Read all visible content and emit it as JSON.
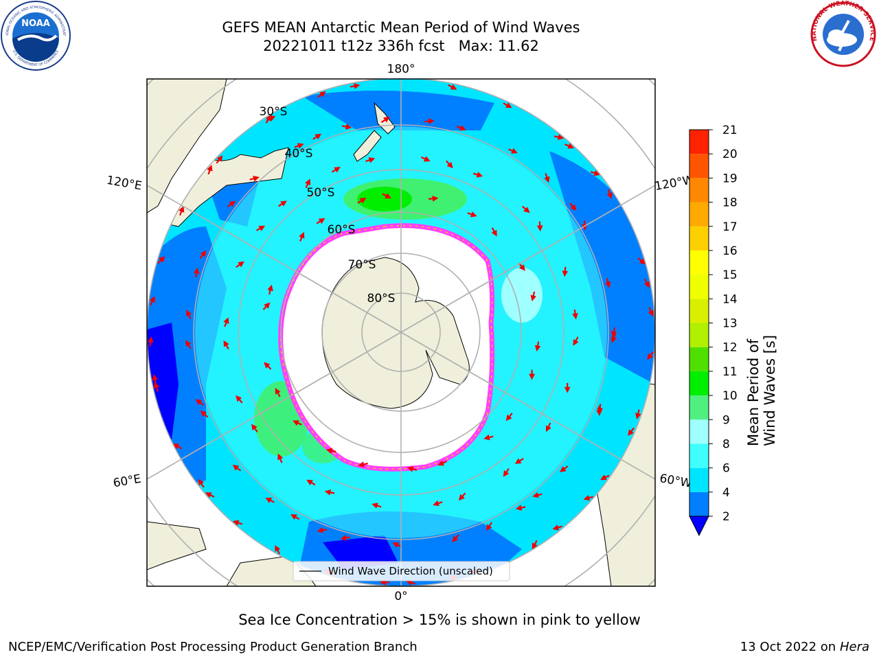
{
  "title": {
    "line1": "GEFS MEAN Antarctic Mean Period of Wind Waves",
    "line2": "20221011 t12z 336h fcst   Max: 11.62"
  },
  "logos": {
    "noaa_text": "NOAA",
    "noaa_ring": "NATIONAL OCEANIC AND ATMOSPHERIC ADMINISTRATION",
    "noaa_ring_bottom": "U.S. DEPARTMENT OF COMMERCE",
    "nws_ring": "NATIONAL WEATHER SERVICE"
  },
  "map": {
    "projection": "south-polar-stereographic",
    "lon_labels": {
      "top": "180°",
      "bottom": "0°",
      "left_upper": "120°E",
      "left_lower": "60°E",
      "right_upper": "120°W",
      "right_lower": "60°W"
    },
    "lat_labels": [
      "30°S",
      "40°S",
      "50°S",
      "60°S",
      "70°S",
      "80°S"
    ],
    "legend": "Wind Wave Direction (unscaled)",
    "colors": {
      "land": "#efefdb",
      "ocean_dark": "#0000ff",
      "ocean_blue": "#0080ff",
      "ocean_cyan": "#00e5ff",
      "ocean_light": "#40ffff",
      "ocean_pale": "#a0ffff",
      "green": "#40f070",
      "green_bright": "#00ee00",
      "ice_pink": "#ff40ff",
      "arrow": "#ee0000"
    }
  },
  "colorbar": {
    "label": "Mean Period of Wind Waves [s]",
    "ticks": [
      "2",
      "4",
      "6",
      "8",
      "9",
      "10",
      "11",
      "12",
      "13",
      "14",
      "15",
      "16",
      "17",
      "18",
      "19",
      "20",
      "21"
    ],
    "colors": [
      "#0080ff",
      "#00e5ff",
      "#40ffff",
      "#a0ffff",
      "#50f080",
      "#00ee00",
      "#50e000",
      "#b0f000",
      "#d8f000",
      "#f0ff00",
      "#ffff00",
      "#ffd000",
      "#ffaa00",
      "#ff8800",
      "#ff5500",
      "#ff2200"
    ],
    "extend_color": "#0000ff"
  },
  "footer": {
    "note": "Sea Ice Concentration > 15% is shown in pink to yellow",
    "credit_left": "NCEP/EMC/Verification Post Processing Product Generation Branch",
    "credit_right_date": "13 Oct 2022 on ",
    "credit_right_machine": "Hera"
  }
}
